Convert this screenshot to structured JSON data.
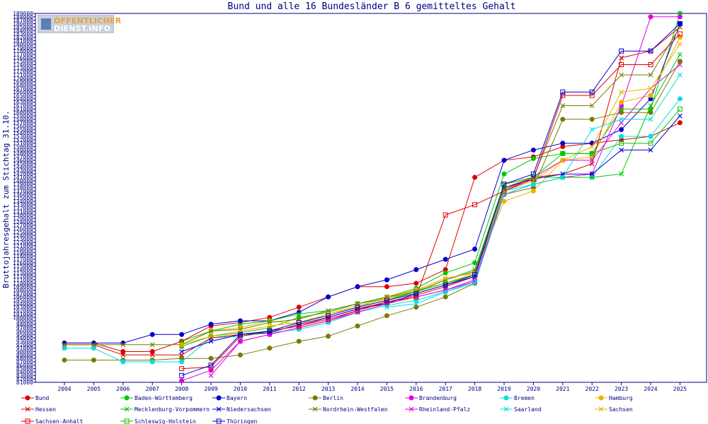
{
  "logo": {
    "line1": "ÖFFENTLICHER",
    "line2": "DIENST.INFO"
  },
  "chart_data": {
    "type": "line",
    "title": "Bund und alle 16 Bundesländer B 6 gemitteltes Gehalt",
    "xlabel": "",
    "ylabel": "Bruttojahresgehalt zum Stichtag 31.10.",
    "x": [
      2004,
      2005,
      2006,
      2007,
      2008,
      2009,
      2010,
      2011,
      2012,
      2013,
      2014,
      2015,
      2016,
      2017,
      2018,
      2019,
      2020,
      2021,
      2022,
      2023,
      2024,
      2025
    ],
    "ylim": [
      81000,
      189000
    ],
    "ytick_step": 1000,
    "grid": false,
    "legend_position": "bottom",
    "series": [
      {
        "name": "Bund",
        "color": "#e00000",
        "marker": "filled",
        "values": [
          92500,
          92500,
          90000,
          90000,
          93000,
          97500,
          98500,
          100000,
          103000,
          106000,
          109000,
          109000,
          110000,
          114000,
          141000,
          146000,
          147000,
          150000,
          151000,
          152000,
          153000,
          157000
        ]
      },
      {
        "name": "Baden-Württemberg",
        "color": "#00c800",
        "marker": "filled",
        "values": [
          null,
          null,
          null,
          null,
          91500,
          94500,
          95500,
          97000,
          100000,
          101500,
          104000,
          106000,
          108500,
          113000,
          116000,
          142000,
          146500,
          148000,
          148000,
          161000,
          161000,
          189000
        ]
      },
      {
        "name": "Bayern",
        "color": "#0000d0",
        "marker": "filled",
        "values": [
          92500,
          92500,
          92500,
          95000,
          95000,
          98000,
          99000,
          99000,
          101500,
          106000,
          109000,
          111000,
          114000,
          117000,
          120000,
          146000,
          149000,
          151000,
          151000,
          155000,
          164000,
          186000
        ]
      },
      {
        "name": "Berlin",
        "color": "#7a7a00",
        "marker": "filled",
        "values": [
          87500,
          87500,
          87500,
          87500,
          88000,
          88000,
          89000,
          91000,
          93000,
          94500,
          97500,
          100500,
          103000,
          106000,
          110000,
          136000,
          138000,
          158000,
          158000,
          160000,
          160000,
          175000
        ]
      },
      {
        "name": "Brandenburg",
        "color": "#e000e0",
        "marker": "filled",
        "values": [
          null,
          null,
          null,
          null,
          81500,
          84500,
          93000,
          95000,
          97000,
          99000,
          102000,
          104500,
          106000,
          108000,
          111000,
          136000,
          139000,
          141000,
          142000,
          162000,
          188000,
          188000
        ]
      },
      {
        "name": "Bremen",
        "color": "#00e0e0",
        "marker": "filled",
        "values": [
          91000,
          91000,
          87000,
          87000,
          87000,
          94000,
          94500,
          95500,
          96500,
          98500,
          101500,
          103500,
          105000,
          107500,
          110500,
          137000,
          139000,
          141000,
          141000,
          153000,
          153000,
          164000
        ]
      },
      {
        "name": "Hamburg",
        "color": "#f0b000",
        "marker": "filled",
        "values": [
          null,
          null,
          null,
          null,
          92000,
          96000,
          97000,
          99000,
          98000,
          101000,
          103000,
          106000,
          108000,
          110000,
          113000,
          134000,
          137000,
          146000,
          147000,
          163000,
          165000,
          182000
        ]
      },
      {
        "name": "Hessen",
        "color": "#e00000",
        "marker": "cross",
        "values": [
          92000,
          92000,
          89000,
          89000,
          89000,
          94000,
          95000,
          96000,
          97500,
          100000,
          102500,
          104500,
          106500,
          109000,
          112000,
          137500,
          141000,
          142000,
          145000,
          176000,
          178000,
          185000
        ]
      },
      {
        "name": "Mecklenburg-Vorpommern",
        "color": "#00c800",
        "marker": "cross",
        "values": [
          null,
          null,
          null,
          null,
          93000,
          96000,
          98000,
          99000,
          101000,
          102000,
          104000,
          105500,
          107500,
          111000,
          114000,
          139000,
          141000,
          141000,
          141000,
          142000,
          162000,
          177000
        ]
      },
      {
        "name": "Niedersachsen",
        "color": "#0000d0",
        "marker": "cross",
        "values": [
          null,
          null,
          null,
          null,
          90000,
          93000,
          95000,
          95500,
          98000,
          100000,
          102500,
          104000,
          107000,
          109500,
          112000,
          138000,
          140500,
          142000,
          142000,
          149000,
          149000,
          159000
        ]
      },
      {
        "name": "Nordrhein-Westfalen",
        "color": "#7a7a00",
        "marker": "cross",
        "values": [
          92000,
          92000,
          92000,
          92000,
          92000,
          96000,
          96500,
          98500,
          99500,
          102000,
          104000,
          106000,
          107500,
          111000,
          113500,
          139000,
          141000,
          162000,
          162000,
          171000,
          171000,
          185000
        ]
      },
      {
        "name": "Rheinland-Pfalz",
        "color": "#e000e0",
        "marker": "cross",
        "values": [
          null,
          null,
          null,
          null,
          null,
          83000,
          93000,
          95000,
          97000,
          99000,
          101500,
          104000,
          106000,
          108000,
          110500,
          137000,
          141000,
          146000,
          146000,
          157000,
          167000,
          174000
        ]
      },
      {
        "name": "Saarland",
        "color": "#00e0e0",
        "marker": "cross",
        "values": [
          null,
          null,
          null,
          null,
          null,
          null,
          null,
          null,
          null,
          null,
          null,
          103000,
          104000,
          107500,
          110000,
          136000,
          139000,
          141000,
          155000,
          158000,
          158000,
          171000
        ]
      },
      {
        "name": "Sachsen",
        "color": "#f0b000",
        "marker": "cross",
        "values": [
          null,
          null,
          null,
          null,
          92000,
          94500,
          96000,
          97500,
          98500,
          101000,
          103500,
          105500,
          108000,
          111500,
          113000,
          137000,
          140000,
          146000,
          150000,
          166000,
          167000,
          180000
        ]
      },
      {
        "name": "Sachsen-Anhalt",
        "color": "#e00000",
        "marker": "square",
        "values": [
          null,
          null,
          null,
          null,
          85000,
          85500,
          94500,
          96000,
          97500,
          99500,
          102000,
          104500,
          106000,
          130000,
          133000,
          137000,
          140500,
          165000,
          165000,
          174000,
          174000,
          183000
        ]
      },
      {
        "name": "Schleswig-Holstein",
        "color": "#00c800",
        "marker": "square",
        "values": [
          null,
          null,
          null,
          null,
          null,
          null,
          null,
          null,
          null,
          null,
          103000,
          105000,
          107500,
          110000,
          112500,
          138000,
          141000,
          148000,
          148000,
          151000,
          151000,
          161000
        ]
      },
      {
        "name": "Thüringen",
        "color": "#0000d0",
        "marker": "square",
        "values": [
          null,
          null,
          null,
          null,
          83000,
          86000,
          95000,
          96000,
          98500,
          100500,
          103000,
          105000,
          107000,
          109500,
          112500,
          139000,
          142000,
          166000,
          166000,
          178000,
          178000,
          186000
        ]
      }
    ]
  }
}
